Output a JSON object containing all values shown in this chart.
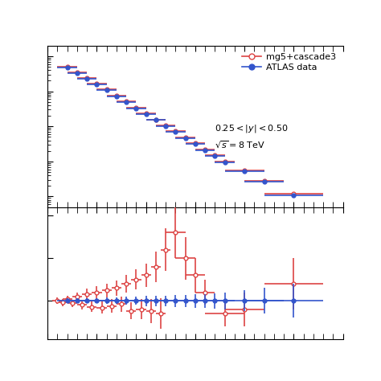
{
  "red_color": "#dd4444",
  "blue_color": "#3355cc",
  "legend_label_red": "mg5+cascade3",
  "legend_label_blue": "ATLAS data",
  "annotation_line1": "$0.25 < |y| < 0.50$",
  "annotation_line2": "$\\sqrt{s} = 8$ TeV",
  "upper_panel": {
    "red_x": [
      2,
      3,
      4,
      5,
      6,
      7,
      8,
      9,
      10,
      11,
      12,
      13,
      14,
      15,
      16,
      17,
      18,
      20,
      22,
      25
    ],
    "red_y": [
      5000,
      3500,
      2400,
      1650,
      1120,
      760,
      510,
      345,
      233,
      157,
      106,
      72,
      48,
      33,
      22,
      15,
      10,
      5.5,
      2.8,
      1.2
    ],
    "red_xerr_lo": [
      1,
      1,
      1,
      1,
      1,
      1,
      1,
      1,
      1,
      1,
      1,
      1,
      1,
      1,
      1,
      1,
      1,
      2,
      2,
      3
    ],
    "red_xerr_hi": [
      1,
      1,
      1,
      1,
      1,
      1,
      1,
      1,
      1,
      1,
      1,
      1,
      1,
      1,
      1,
      1,
      1,
      2,
      2,
      3
    ],
    "red_yerr_lo": [
      200,
      140,
      100,
      70,
      50,
      35,
      24,
      16,
      11,
      8,
      5.5,
      4,
      2.8,
      2,
      1.5,
      1,
      0.7,
      0.4,
      0.22,
      0.1
    ],
    "red_yerr_hi": [
      200,
      140,
      100,
      70,
      50,
      35,
      24,
      16,
      11,
      8,
      5.5,
      4,
      2.8,
      2,
      1.5,
      1,
      0.7,
      0.4,
      0.22,
      0.1
    ],
    "blue_x": [
      2,
      3,
      4,
      5,
      6,
      7,
      8,
      9,
      10,
      11,
      12,
      13,
      14,
      15,
      16,
      17,
      18,
      20,
      22,
      25
    ],
    "blue_y": [
      4800,
      3350,
      2300,
      1580,
      1080,
      730,
      490,
      330,
      224,
      151,
      102,
      69,
      46,
      31,
      21,
      14.5,
      9.5,
      5.2,
      2.6,
      1.1
    ],
    "blue_xerr_lo": [
      1,
      1,
      1,
      1,
      1,
      1,
      1,
      1,
      1,
      1,
      1,
      1,
      1,
      1,
      1,
      1,
      1,
      2,
      2,
      3
    ],
    "blue_xerr_hi": [
      1,
      1,
      1,
      1,
      1,
      1,
      1,
      1,
      1,
      1,
      1,
      1,
      1,
      1,
      1,
      1,
      1,
      2,
      2,
      3
    ],
    "blue_yerr_lo": [
      180,
      130,
      95,
      65,
      47,
      32,
      22,
      15,
      10,
      7.5,
      5,
      3.7,
      2.6,
      1.9,
      1.3,
      0.95,
      0.65,
      0.38,
      0.2,
      0.09
    ],
    "blue_yerr_hi": [
      180,
      130,
      95,
      65,
      47,
      32,
      22,
      15,
      10,
      7.5,
      5,
      3.7,
      2.6,
      1.9,
      1.3,
      0.95,
      0.65,
      0.38,
      0.2,
      0.09
    ],
    "ylim_log": [
      0.5,
      20000
    ],
    "xlim": [
      0,
      30
    ]
  },
  "lower_panel": {
    "red_x": [
      1,
      1.5,
      2,
      2.5,
      3,
      3.5,
      4,
      4.5,
      5,
      5.5,
      6,
      6.5,
      7,
      7.5,
      8,
      8.5,
      9,
      9.5,
      10,
      10.5,
      11,
      11.5,
      12,
      13,
      14,
      15,
      16,
      18,
      20,
      25
    ],
    "red_y": [
      1.0,
      0.98,
      1.02,
      0.97,
      1.05,
      0.95,
      1.08,
      0.93,
      1.1,
      0.92,
      1.12,
      0.94,
      1.15,
      0.96,
      1.2,
      0.88,
      1.25,
      0.9,
      1.3,
      0.88,
      1.4,
      0.85,
      1.6,
      1.8,
      1.5,
      1.3,
      1.1,
      0.85,
      0.9,
      1.2
    ],
    "red_xerr_lo": [
      0.5,
      0.5,
      0.5,
      0.5,
      0.5,
      0.5,
      0.5,
      0.5,
      0.5,
      0.5,
      0.5,
      0.5,
      0.5,
      0.5,
      0.5,
      0.5,
      0.5,
      0.5,
      0.5,
      0.5,
      0.5,
      0.5,
      0.5,
      1,
      1,
      1,
      1,
      2,
      2,
      3
    ],
    "red_xerr_hi": [
      0.5,
      0.5,
      0.5,
      0.5,
      0.5,
      0.5,
      0.5,
      0.5,
      0.5,
      0.5,
      0.5,
      0.5,
      0.5,
      0.5,
      0.5,
      0.5,
      0.5,
      0.5,
      0.5,
      0.5,
      0.5,
      0.5,
      0.5,
      1,
      1,
      1,
      1,
      2,
      2,
      3
    ],
    "red_yerr_lo": [
      0.04,
      0.04,
      0.04,
      0.04,
      0.05,
      0.05,
      0.06,
      0.06,
      0.07,
      0.07,
      0.08,
      0.08,
      0.09,
      0.09,
      0.1,
      0.1,
      0.12,
      0.12,
      0.14,
      0.14,
      0.18,
      0.18,
      0.25,
      0.3,
      0.25,
      0.2,
      0.15,
      0.15,
      0.2,
      0.3
    ],
    "red_yerr_hi": [
      0.04,
      0.04,
      0.04,
      0.04,
      0.05,
      0.05,
      0.06,
      0.06,
      0.07,
      0.07,
      0.08,
      0.08,
      0.09,
      0.09,
      0.1,
      0.1,
      0.12,
      0.12,
      0.14,
      0.14,
      0.18,
      0.18,
      0.25,
      0.3,
      0.25,
      0.2,
      0.15,
      0.15,
      0.2,
      0.3
    ],
    "blue_x": [
      2,
      3,
      4,
      5,
      6,
      7,
      8,
      9,
      10,
      11,
      12,
      13,
      14,
      15,
      16,
      17,
      18,
      20,
      22,
      25
    ],
    "blue_y": [
      1.0,
      1.0,
      1.0,
      1.0,
      1.0,
      1.0,
      1.0,
      1.0,
      1.0,
      1.0,
      1.0,
      1.0,
      1.0,
      1.0,
      1.0,
      1.0,
      1.0,
      1.0,
      1.0,
      1.0
    ],
    "blue_xerr_lo": [
      1,
      1,
      1,
      1,
      1,
      1,
      1,
      1,
      1,
      1,
      1,
      1,
      1,
      1,
      1,
      1,
      1,
      2,
      2,
      3
    ],
    "blue_xerr_hi": [
      1,
      1,
      1,
      1,
      1,
      1,
      1,
      1,
      1,
      1,
      1,
      1,
      1,
      1,
      1,
      1,
      1,
      2,
      2,
      3
    ],
    "blue_yerr_lo": [
      0.03,
      0.03,
      0.03,
      0.03,
      0.04,
      0.04,
      0.05,
      0.05,
      0.06,
      0.06,
      0.06,
      0.07,
      0.07,
      0.08,
      0.08,
      0.09,
      0.1,
      0.12,
      0.15,
      0.2
    ],
    "blue_yerr_hi": [
      0.03,
      0.03,
      0.03,
      0.03,
      0.04,
      0.04,
      0.05,
      0.05,
      0.06,
      0.06,
      0.06,
      0.07,
      0.07,
      0.08,
      0.08,
      0.09,
      0.1,
      0.12,
      0.15,
      0.2
    ],
    "ylim": [
      0.55,
      2.1
    ],
    "xlim": [
      0,
      30
    ]
  }
}
